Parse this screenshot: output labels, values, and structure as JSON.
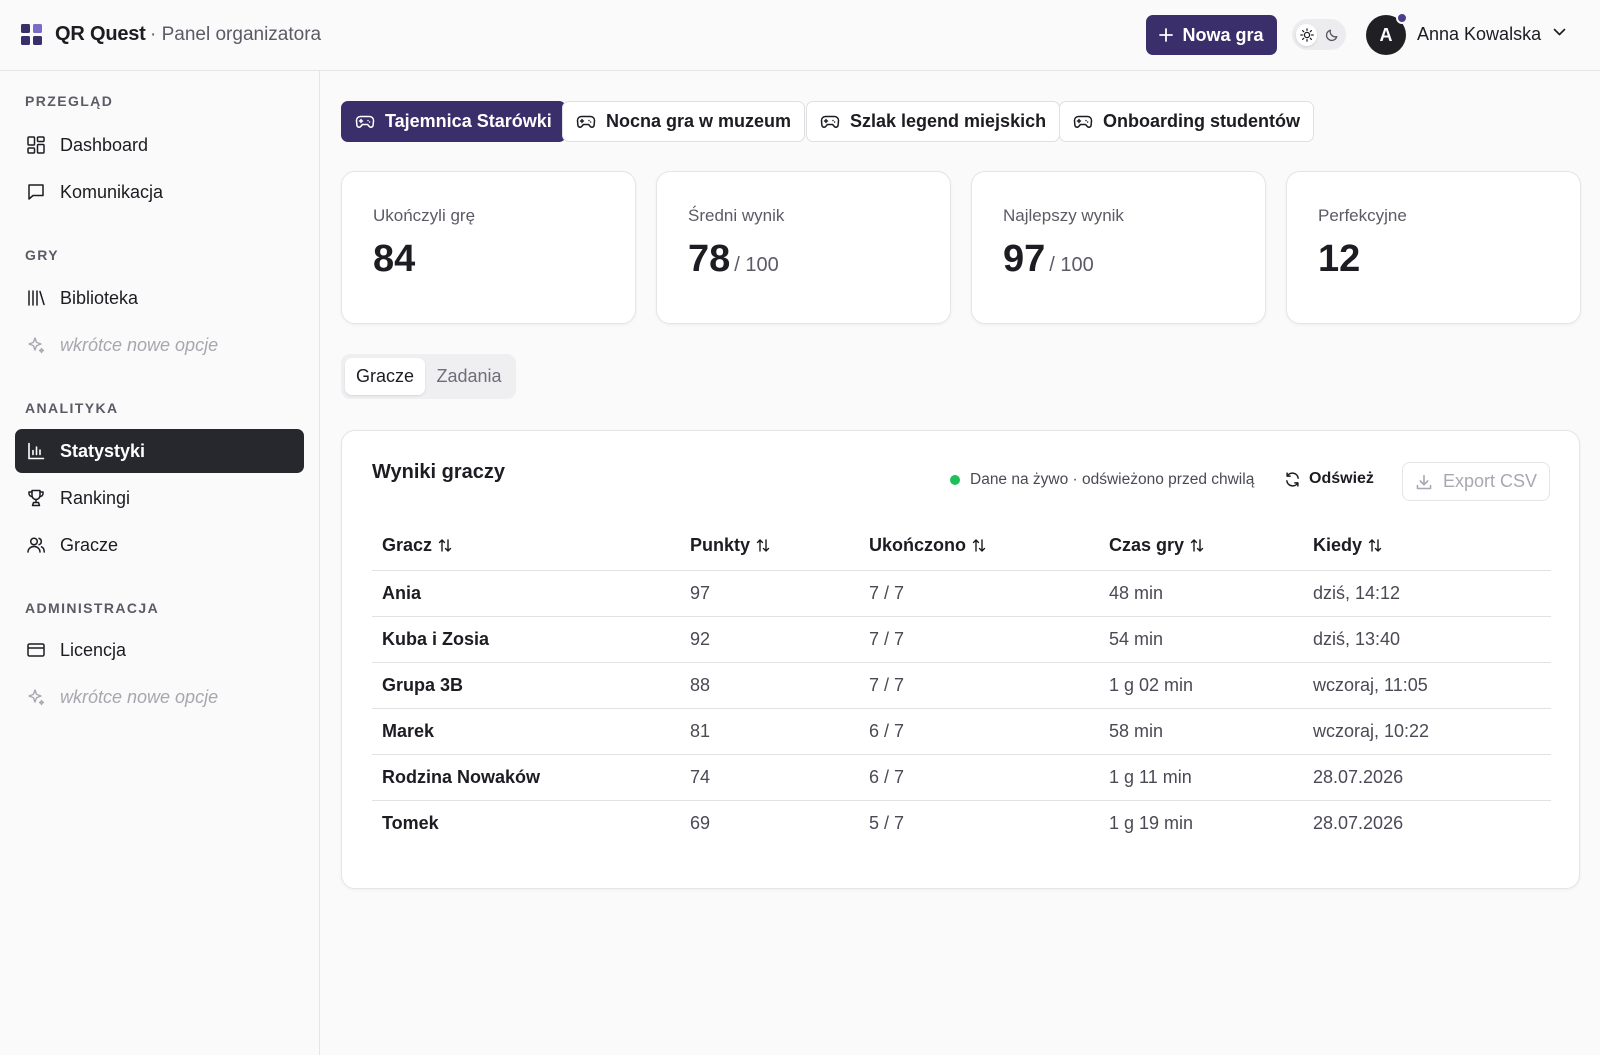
{
  "header": {
    "brand": "QR Quest",
    "subtitle": "· Panel organizatora",
    "new_game_label": "Nowa gra",
    "user_initial": "A",
    "user_name": "Anna Kowalska"
  },
  "sidebar": {
    "sections": [
      {
        "label": "PRZEGLĄD",
        "items": [
          {
            "label": "Dashboard",
            "icon": "dashboard-icon"
          },
          {
            "label": "Komunikacja",
            "icon": "message-icon"
          }
        ]
      },
      {
        "label": "GRY",
        "items": [
          {
            "label": "Biblioteka",
            "icon": "library-icon"
          },
          {
            "label": "wkrótce nowe opcje",
            "icon": "sparkles-icon"
          }
        ]
      },
      {
        "label": "ANALITYKA",
        "items": [
          {
            "label": "Statystyki",
            "icon": "bar-chart-icon"
          },
          {
            "label": "Rankingi",
            "icon": "trophy-icon"
          },
          {
            "label": "Gracze",
            "icon": "users-icon"
          }
        ]
      },
      {
        "label": "ADMINISTRACJA",
        "items": [
          {
            "label": "Licencja",
            "icon": "credit-card-icon"
          },
          {
            "label": "wkrótce nowe opcje",
            "icon": "sparkles-icon"
          }
        ]
      }
    ],
    "active_item": "Statystyki"
  },
  "game_tabs": [
    {
      "label": "Tajemnica Starówki",
      "active": true
    },
    {
      "label": "Nocna gra w muzeum",
      "active": false
    },
    {
      "label": "Szlak legend miejskich",
      "active": false
    },
    {
      "label": "Onboarding studentów",
      "active": false
    }
  ],
  "stats": [
    {
      "label": "Ukończyli grę",
      "value": "84",
      "suffix": ""
    },
    {
      "label": "Średni wynik",
      "value": "78",
      "suffix": "/ 100"
    },
    {
      "label": "Najlepszy wynik",
      "value": "97",
      "suffix": "/ 100"
    },
    {
      "label": "Perfekcyjne",
      "value": "12",
      "suffix": ""
    }
  ],
  "view_tabs": [
    {
      "label": "Gracze",
      "active": true
    },
    {
      "label": "Zadania",
      "active": false
    }
  ],
  "results": {
    "title": "Wyniki graczy",
    "live_status": "Dane na żywo · odświeżono przed chwilą",
    "refresh_label": "Odśwież",
    "export_label": "Export CSV",
    "columns": [
      "Gracz",
      "Punkty",
      "Ukończono",
      "Czas gry",
      "Kiedy"
    ],
    "rows": [
      [
        "Ania",
        "97",
        "7 / 7",
        "48 min",
        "dziś, 14:12"
      ],
      [
        "Kuba i Zosia",
        "92",
        "7 / 7",
        "54 min",
        "dziś, 13:40"
      ],
      [
        "Grupa 3B",
        "88",
        "7 / 7",
        "1 g 02 min",
        "wczoraj, 11:05"
      ],
      [
        "Marek",
        "81",
        "6 / 7",
        "58 min",
        "wczoraj, 10:22"
      ],
      [
        "Rodzina Nowaków",
        "74",
        "6 / 7",
        "1 g 11 min",
        "28.07.2026"
      ],
      [
        "Tomek",
        "69",
        "5 / 7",
        "1 g 19 min",
        "28.07.2026"
      ]
    ]
  },
  "colors": {
    "accent": "#3a2f6b",
    "sidebar_active": "#27272e",
    "live": "#1fbf5c"
  }
}
